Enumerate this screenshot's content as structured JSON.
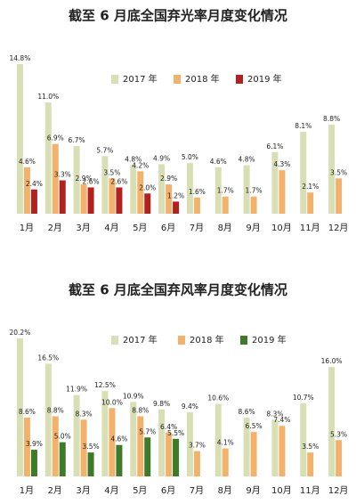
{
  "chart_data": [
    {
      "type": "bar",
      "title": "截至 6 月底全国弃光率月度变化情况",
      "categories": [
        "1月",
        "2月",
        "3月",
        "4月",
        "5月",
        "6月",
        "7月",
        "8月",
        "9月",
        "10月",
        "11月",
        "12月"
      ],
      "series": [
        {
          "name": "2017 年",
          "color": "#d9dfb4",
          "values": [
            14.8,
            11.0,
            6.7,
            5.7,
            4.8,
            4.9,
            5.0,
            4.6,
            4.8,
            6.1,
            8.1,
            8.8
          ],
          "value_labels": [
            "14.8%",
            "11.0%",
            "6.7%",
            "5.7%",
            "4.8%",
            "4.9%",
            "5.0%",
            "4.6%",
            "4.8%",
            "6.1%",
            "8.1%",
            "8.8%"
          ]
        },
        {
          "name": "2018 年",
          "color": "#f3b26c",
          "values": [
            4.6,
            6.9,
            2.9,
            3.5,
            4.2,
            2.9,
            1.6,
            1.7,
            1.7,
            4.3,
            2.1,
            3.5
          ],
          "value_labels": [
            "4.6%",
            "6.9%",
            "2.9%",
            "3.5%",
            "4.2%",
            "2.9%",
            "1.6%",
            "1.7%",
            "1.7%",
            "4.3%",
            "2.1%",
            "3.5%"
          ]
        },
        {
          "name": "2019 年",
          "color": "#b3211e",
          "values": [
            2.4,
            3.3,
            2.6,
            2.6,
            2.0,
            1.2,
            null,
            null,
            null,
            null,
            null,
            null
          ],
          "value_labels": [
            "2.4%",
            "3.3%",
            "2.6%",
            "2.6%",
            "2.0%",
            "1.2%",
            null,
            null,
            null,
            null,
            null,
            null
          ]
        }
      ]
    },
    {
      "type": "bar",
      "title": "截至 6 月底全国弃风率月度变化情况",
      "categories": [
        "1月",
        "2月",
        "3月",
        "4月",
        "5月",
        "6月",
        "7月",
        "8月",
        "9月",
        "10月",
        "11月",
        "12月"
      ],
      "series": [
        {
          "name": "2017 年",
          "color": "#d9dfb4",
          "values": [
            20.2,
            16.5,
            11.9,
            12.5,
            10.9,
            9.8,
            9.4,
            10.6,
            8.6,
            8.3,
            10.7,
            16.0
          ],
          "value_labels": [
            "20.2%",
            "16.5%",
            "11.9%",
            "12.5%",
            "10.9%",
            "9.8%",
            "9.4%",
            "10.6%",
            "8.6%",
            "8.3%",
            "10.7%",
            "16.0%"
          ]
        },
        {
          "name": "2018 年",
          "color": "#f3b26c",
          "values": [
            8.6,
            8.8,
            8.3,
            10.0,
            8.8,
            6.4,
            3.7,
            4.1,
            6.5,
            7.4,
            3.5,
            5.3
          ],
          "value_labels": [
            "8.6%",
            "8.8%",
            "8.3%",
            "10.0%",
            "8.8%",
            "6.4%",
            "3.7%",
            "4.1%",
            "6.5%",
            "7.4%",
            "3.5%",
            "5.3%"
          ]
        },
        {
          "name": "2019 年",
          "color": "#3d7a2a",
          "values": [
            3.9,
            5.0,
            3.5,
            4.6,
            5.7,
            5.5,
            null,
            null,
            null,
            null,
            null,
            null
          ],
          "value_labels": [
            "3.9%",
            "5.0%",
            "3.5%",
            "4.6%",
            "5.7%",
            "5.5%",
            null,
            null,
            null,
            null,
            null,
            null
          ]
        }
      ]
    }
  ]
}
